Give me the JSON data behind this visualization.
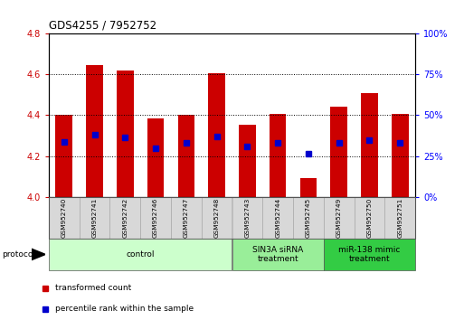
{
  "title": "GDS4255 / 7952752",
  "samples": [
    "GSM952740",
    "GSM952741",
    "GSM952742",
    "GSM952746",
    "GSM952747",
    "GSM952748",
    "GSM952743",
    "GSM952744",
    "GSM952745",
    "GSM952749",
    "GSM952750",
    "GSM952751"
  ],
  "bar_tops": [
    4.4,
    4.645,
    4.62,
    4.385,
    4.4,
    4.605,
    4.355,
    4.405,
    4.09,
    4.44,
    4.51,
    4.405
  ],
  "percentile_values": [
    4.27,
    4.305,
    4.29,
    4.24,
    4.265,
    4.295,
    4.245,
    4.265,
    4.21,
    4.265,
    4.28,
    4.265
  ],
  "ylim": [
    4.0,
    4.8
  ],
  "y2lim": [
    0,
    100
  ],
  "yticks": [
    4.0,
    4.2,
    4.4,
    4.6,
    4.8
  ],
  "y2ticks": [
    0,
    25,
    50,
    75,
    100
  ],
  "bar_color": "#cc0000",
  "percentile_color": "#0000cc",
  "groups": [
    {
      "label": "control",
      "start": 0,
      "end": 6,
      "color": "#ccffcc"
    },
    {
      "label": "SIN3A siRNA\ntreatment",
      "start": 6,
      "end": 9,
      "color": "#99ee99"
    },
    {
      "label": "miR-138 mimic\ntreatment",
      "start": 9,
      "end": 12,
      "color": "#33cc44"
    }
  ],
  "legend_items": [
    {
      "label": "transformed count",
      "color": "#cc0000"
    },
    {
      "label": "percentile rank within the sample",
      "color": "#0000cc"
    }
  ],
  "protocol_label": "protocol",
  "bar_width": 0.55,
  "bar_bottom": 4.0
}
